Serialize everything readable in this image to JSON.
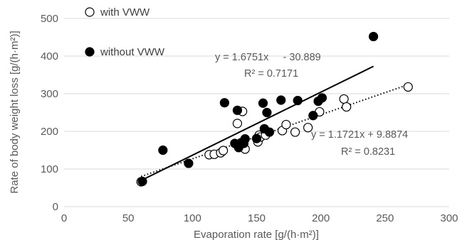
{
  "chart_data": {
    "type": "scatter",
    "title": "",
    "xlabel": "Evaporation rate [g/(h·m²)]",
    "ylabel": "Rate of body weight loss [g/(h·m²)]",
    "xlim": [
      0,
      300
    ],
    "ylim": [
      0,
      500
    ],
    "x_ticks": [
      "0",
      "50",
      "100",
      "150",
      "200",
      "250",
      "300"
    ],
    "y_ticks": [
      "0",
      "100",
      "200",
      "300",
      "400",
      "500"
    ],
    "grid": "horizontal",
    "legend_position": "top-left",
    "series": [
      {
        "name": "with VWW",
        "marker": "open-circle",
        "color": "#000000",
        "x": [
          60,
          113,
          117,
          122,
          124,
          135,
          139,
          141,
          151,
          152,
          153,
          157,
          170,
          173,
          180,
          190,
          199,
          218,
          220,
          268
        ],
        "y": [
          66,
          138,
          139,
          143,
          149,
          221,
          253,
          153,
          172,
          190,
          185,
          190,
          202,
          218,
          198,
          210,
          252,
          286,
          265,
          318
        ]
      },
      {
        "name": "without VWW",
        "marker": "filled-circle",
        "color": "#000000",
        "x": [
          61,
          77,
          97,
          125,
          133,
          135,
          136,
          137,
          138,
          140,
          141,
          150,
          155,
          156,
          158,
          160,
          169,
          182,
          194,
          198,
          201,
          241
        ],
        "y": [
          67,
          150,
          115,
          276,
          168,
          256,
          157,
          164,
          170,
          168,
          180,
          181,
          275,
          207,
          250,
          198,
          283,
          282,
          242,
          280,
          289,
          452
        ]
      }
    ],
    "trendlines": [
      {
        "series": "without VWW",
        "style": "solid",
        "slope": 1.6751,
        "intercept": -30.889,
        "x_range": [
          60,
          241
        ],
        "equation": "y = 1.6751x     - 30.889",
        "r2": "R² = 0.7171"
      },
      {
        "series": "with VWW",
        "style": "dotted",
        "slope": 1.1721,
        "intercept": 9.8874,
        "x_range": [
          60,
          268
        ],
        "equation": "y = 1.1721x + 9.8874",
        "r2": "R² = 0.8231"
      }
    ]
  }
}
